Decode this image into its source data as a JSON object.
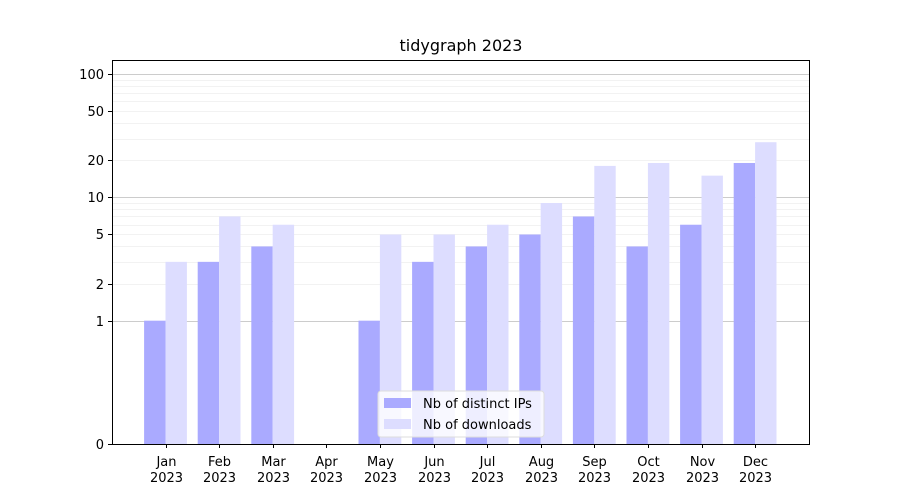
{
  "chart_data": {
    "type": "bar",
    "title": "tidygraph 2023",
    "xlabel": "",
    "ylabel": "",
    "y_scale": "symlog",
    "ylim": [
      0,
      130
    ],
    "y_ticks": [
      0,
      1,
      2,
      5,
      10,
      20,
      50,
      100
    ],
    "y_tick_labels": [
      "0",
      "1",
      "2",
      "5",
      "10",
      "20",
      "50",
      "100"
    ],
    "categories": [
      "Jan 2023",
      "Feb 2023",
      "Mar 2023",
      "Apr 2023",
      "May 2023",
      "Jun 2023",
      "Jul 2023",
      "Aug 2023",
      "Sep 2023",
      "Oct 2023",
      "Nov 2023",
      "Dec 2023"
    ],
    "category_lines": [
      [
        "Jan",
        "2023"
      ],
      [
        "Feb",
        "2023"
      ],
      [
        "Mar",
        "2023"
      ],
      [
        "Apr",
        "2023"
      ],
      [
        "May",
        "2023"
      ],
      [
        "Jun",
        "2023"
      ],
      [
        "Jul",
        "2023"
      ],
      [
        "Aug",
        "2023"
      ],
      [
        "Sep",
        "2023"
      ],
      [
        "Oct",
        "2023"
      ],
      [
        "Nov",
        "2023"
      ],
      [
        "Dec",
        "2023"
      ]
    ],
    "series": [
      {
        "name": "Nb of distinct IPs",
        "color": "#aaaaff",
        "values": [
          1,
          3,
          4,
          0,
          1,
          3,
          4,
          5,
          7,
          4,
          6,
          19
        ]
      },
      {
        "name": "Nb of downloads",
        "color": "#ddddff",
        "values": [
          3,
          7,
          6,
          0,
          5,
          5,
          6,
          9,
          18,
          19,
          15,
          28
        ]
      }
    ],
    "grid": true,
    "legend_position": "bottom-center"
  }
}
